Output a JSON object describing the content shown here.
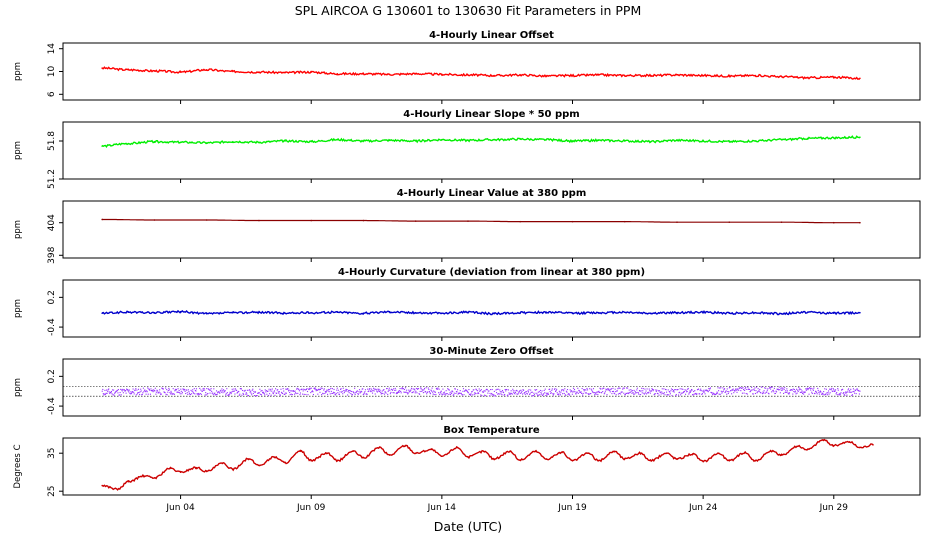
{
  "title": "SPL   AIRCOA G   130601 to 130630   Fit Parameters in PPM",
  "xlabel": "Date (UTC)",
  "chart_data": [
    {
      "type": "line",
      "title": "4-Hourly Linear Offset",
      "ylabel": "ppm",
      "yticks": [
        "6",
        "10",
        "14"
      ],
      "ylim": [
        5,
        15
      ],
      "color": "#ff0000",
      "mode": "line",
      "x": [
        1.0,
        2.0,
        3.0,
        4.0,
        5.0,
        6.0,
        7.0,
        8.0,
        9.0,
        10.0,
        11.0,
        12.0,
        13.0,
        14.0,
        15.0,
        16.0,
        17.0,
        18.0,
        19.0,
        20.0,
        21.0,
        22.0,
        23.0,
        24.0,
        25.0,
        26.0,
        27.0,
        28.0,
        29.0,
        30.0
      ],
      "values": [
        10.6,
        10.3,
        10.1,
        9.9,
        10.3,
        10.0,
        9.9,
        9.8,
        9.9,
        9.6,
        9.6,
        9.5,
        9.6,
        9.5,
        9.4,
        9.3,
        9.4,
        9.2,
        9.3,
        9.4,
        9.3,
        9.3,
        9.4,
        9.3,
        9.2,
        9.3,
        9.1,
        8.9,
        9.0,
        8.8
      ]
    },
    {
      "type": "line",
      "title": "4-Hourly Linear Slope * 50 ppm",
      "ylabel": "ppm",
      "yticks": [
        "51.2",
        "51.8"
      ],
      "ylim": [
        51.2,
        52.1
      ],
      "color": "#00ee00",
      "mode": "line",
      "x": [
        1.0,
        2.0,
        3.0,
        4.0,
        5.0,
        6.0,
        7.0,
        8.0,
        9.0,
        10.0,
        11.0,
        12.0,
        13.0,
        14.0,
        15.0,
        16.0,
        17.0,
        18.0,
        19.0,
        20.0,
        21.0,
        22.0,
        23.0,
        24.0,
        25.0,
        26.0,
        27.0,
        28.0,
        29.0,
        30.0
      ],
      "values": [
        51.72,
        51.76,
        51.79,
        51.78,
        51.77,
        51.79,
        51.78,
        51.8,
        51.79,
        51.82,
        51.8,
        51.81,
        51.8,
        51.82,
        51.81,
        51.82,
        51.83,
        51.82,
        51.8,
        51.81,
        51.8,
        51.79,
        51.81,
        51.8,
        51.79,
        51.8,
        51.82,
        51.84,
        51.85,
        51.86
      ]
    },
    {
      "type": "scatter",
      "title": "4-Hourly Linear Value at 380 ppm",
      "ylabel": "ppm",
      "yticks": [
        "398",
        "404"
      ],
      "ylim": [
        397.5,
        408
      ],
      "color": "#8b0000",
      "mode": "line",
      "x": [
        1.0,
        3.0,
        5.0,
        7.0,
        9.0,
        11.0,
        13.0,
        15.0,
        17.0,
        19.0,
        21.0,
        23.0,
        25.0,
        27.0,
        29.0,
        30.0
      ],
      "values": [
        404.6,
        404.5,
        404.5,
        404.4,
        404.4,
        404.4,
        404.3,
        404.3,
        404.2,
        404.2,
        404.2,
        404.1,
        404.1,
        404.1,
        404.0,
        404.0
      ]
    },
    {
      "type": "line",
      "title": "4-Hourly Curvature (deviation from linear at 380 ppm)",
      "ylabel": "ppm",
      "yticks": [
        "-0.4",
        "0.2"
      ],
      "ylim": [
        -0.6,
        0.55
      ],
      "color": "#0000cc",
      "mode": "line",
      "x": [
        1.0,
        2.0,
        3.0,
        4.0,
        5.0,
        6.0,
        7.0,
        8.0,
        9.0,
        10.0,
        11.0,
        12.0,
        13.0,
        14.0,
        15.0,
        16.0,
        17.0,
        18.0,
        19.0,
        20.0,
        21.0,
        22.0,
        23.0,
        24.0,
        25.0,
        26.0,
        27.0,
        28.0,
        29.0,
        30.0
      ],
      "values": [
        -0.12,
        -0.1,
        -0.11,
        -0.09,
        -0.13,
        -0.11,
        -0.1,
        -0.12,
        -0.11,
        -0.1,
        -0.12,
        -0.09,
        -0.11,
        -0.12,
        -0.1,
        -0.13,
        -0.11,
        -0.1,
        -0.12,
        -0.11,
        -0.1,
        -0.12,
        -0.11,
        -0.1,
        -0.12,
        -0.11,
        -0.13,
        -0.1,
        -0.12,
        -0.11
      ]
    },
    {
      "type": "scatter",
      "title": "30-Minute Zero Offset",
      "ylabel": "ppm",
      "yticks": [
        "-0.4",
        "0.2"
      ],
      "ylim": [
        -0.6,
        0.55
      ],
      "color": "#9933ff",
      "mode": "band",
      "reference_lines": [
        0.0,
        -0.2
      ],
      "x": [
        1.0,
        3.0,
        5.0,
        7.0,
        9.0,
        11.0,
        13.0,
        15.0,
        17.0,
        19.0,
        21.0,
        23.0,
        25.0,
        27.0,
        29.0,
        30.0
      ],
      "values": [
        -0.12,
        -0.1,
        -0.11,
        -0.12,
        -0.1,
        -0.11,
        -0.09,
        -0.12,
        -0.13,
        -0.11,
        -0.1,
        -0.12,
        -0.09,
        -0.08,
        -0.11,
        -0.12
      ]
    },
    {
      "type": "line",
      "title": "Box Temperature",
      "ylabel": "Degrees C",
      "yticks": [
        "25",
        "35"
      ],
      "ylim": [
        24,
        39
      ],
      "color": "#cc0000",
      "mode": "line",
      "x": [
        1.0,
        1.6,
        2.0,
        2.6,
        3.0,
        3.6,
        4.0,
        4.6,
        5.0,
        5.6,
        6.0,
        6.6,
        7.0,
        7.6,
        8.0,
        8.6,
        9.0,
        9.6,
        10.0,
        10.6,
        11.0,
        11.6,
        12.0,
        12.6,
        13.0,
        13.6,
        14.0,
        14.6,
        15.0,
        15.6,
        16.0,
        16.6,
        17.0,
        17.6,
        18.0,
        18.6,
        19.0,
        19.6,
        20.0,
        20.6,
        21.0,
        21.6,
        22.0,
        22.6,
        23.0,
        23.6,
        24.0,
        24.6,
        25.0,
        25.6,
        26.0,
        26.6,
        27.0,
        27.6,
        28.0,
        28.6,
        29.0,
        29.6,
        30.0,
        30.5
      ],
      "values": [
        26.5,
        25.5,
        27.5,
        29.0,
        28.5,
        31.0,
        30.0,
        31.2,
        30.2,
        32.3,
        30.8,
        33.5,
        31.8,
        34.0,
        32.5,
        35.5,
        33.0,
        35.0,
        33.0,
        35.5,
        33.8,
        36.5,
        34.5,
        37.0,
        35.0,
        36.0,
        34.2,
        36.5,
        34.0,
        35.5,
        33.5,
        35.5,
        33.2,
        35.5,
        33.5,
        35.2,
        33.0,
        35.0,
        33.0,
        35.5,
        33.5,
        35.0,
        33.0,
        35.0,
        33.5,
        34.8,
        32.8,
        35.0,
        33.0,
        35.2,
        33.0,
        35.5,
        34.5,
        36.8,
        36.0,
        38.5,
        37.0,
        38.0,
        36.5,
        37.2
      ]
    }
  ],
  "x_axis": {
    "ticks": [
      "Jun 04",
      "Jun 09",
      "Jun 14",
      "Jun 19",
      "Jun 24",
      "Jun 29"
    ],
    "range": [
      -0.5,
      32.3
    ]
  }
}
